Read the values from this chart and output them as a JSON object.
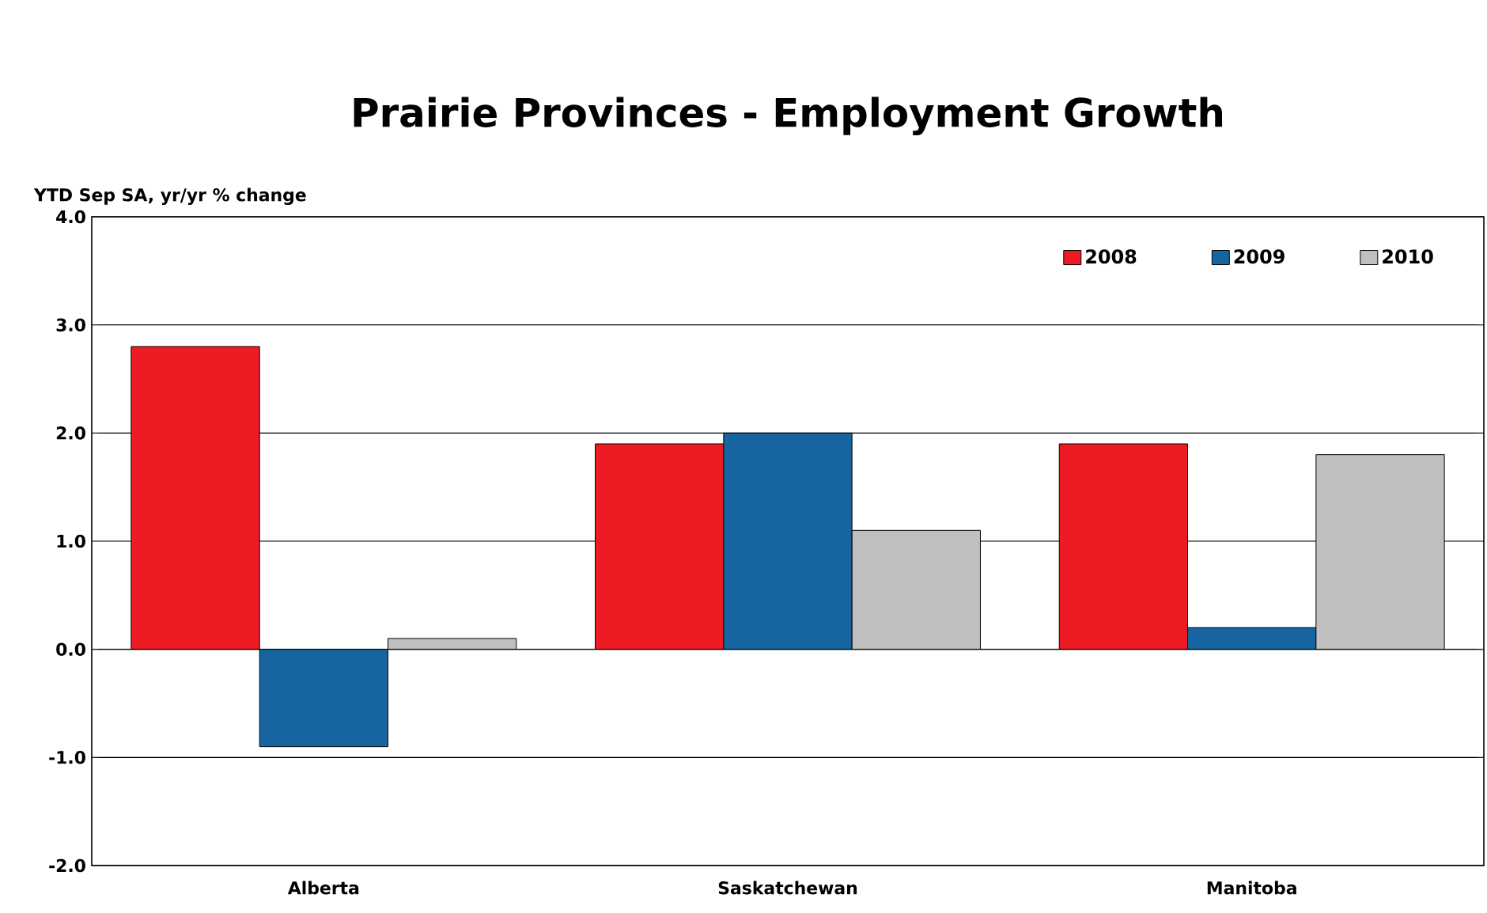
{
  "chart_data": {
    "type": "bar",
    "title": "Prairie Provinces - Employment Growth",
    "ylabel": "YTD Sep SA, yr/yr % change",
    "categories": [
      "Alberta",
      "Saskatchewan",
      "Manitoba"
    ],
    "series": [
      {
        "name": "2008",
        "color": "#ed1c24",
        "values": [
          2.8,
          1.9,
          1.9
        ]
      },
      {
        "name": "2009",
        "color": "#1665a1",
        "values": [
          -0.9,
          2.0,
          0.2
        ]
      },
      {
        "name": "2010",
        "color": "#bfbfbf",
        "values": [
          0.1,
          1.1,
          1.8
        ]
      }
    ],
    "ylim": [
      -2.0,
      4.0
    ],
    "yticks": [
      {
        "value": -2,
        "label": "-2.0"
      },
      {
        "value": -1,
        "label": "-1.0"
      },
      {
        "value": 0,
        "label": "0.0"
      },
      {
        "value": 1,
        "label": "1.0"
      },
      {
        "value": 2,
        "label": "2.0"
      },
      {
        "value": 3,
        "label": "3.0"
      },
      {
        "value": 4,
        "label": "4.0"
      }
    ],
    "grid": "y",
    "legend": "top right"
  }
}
